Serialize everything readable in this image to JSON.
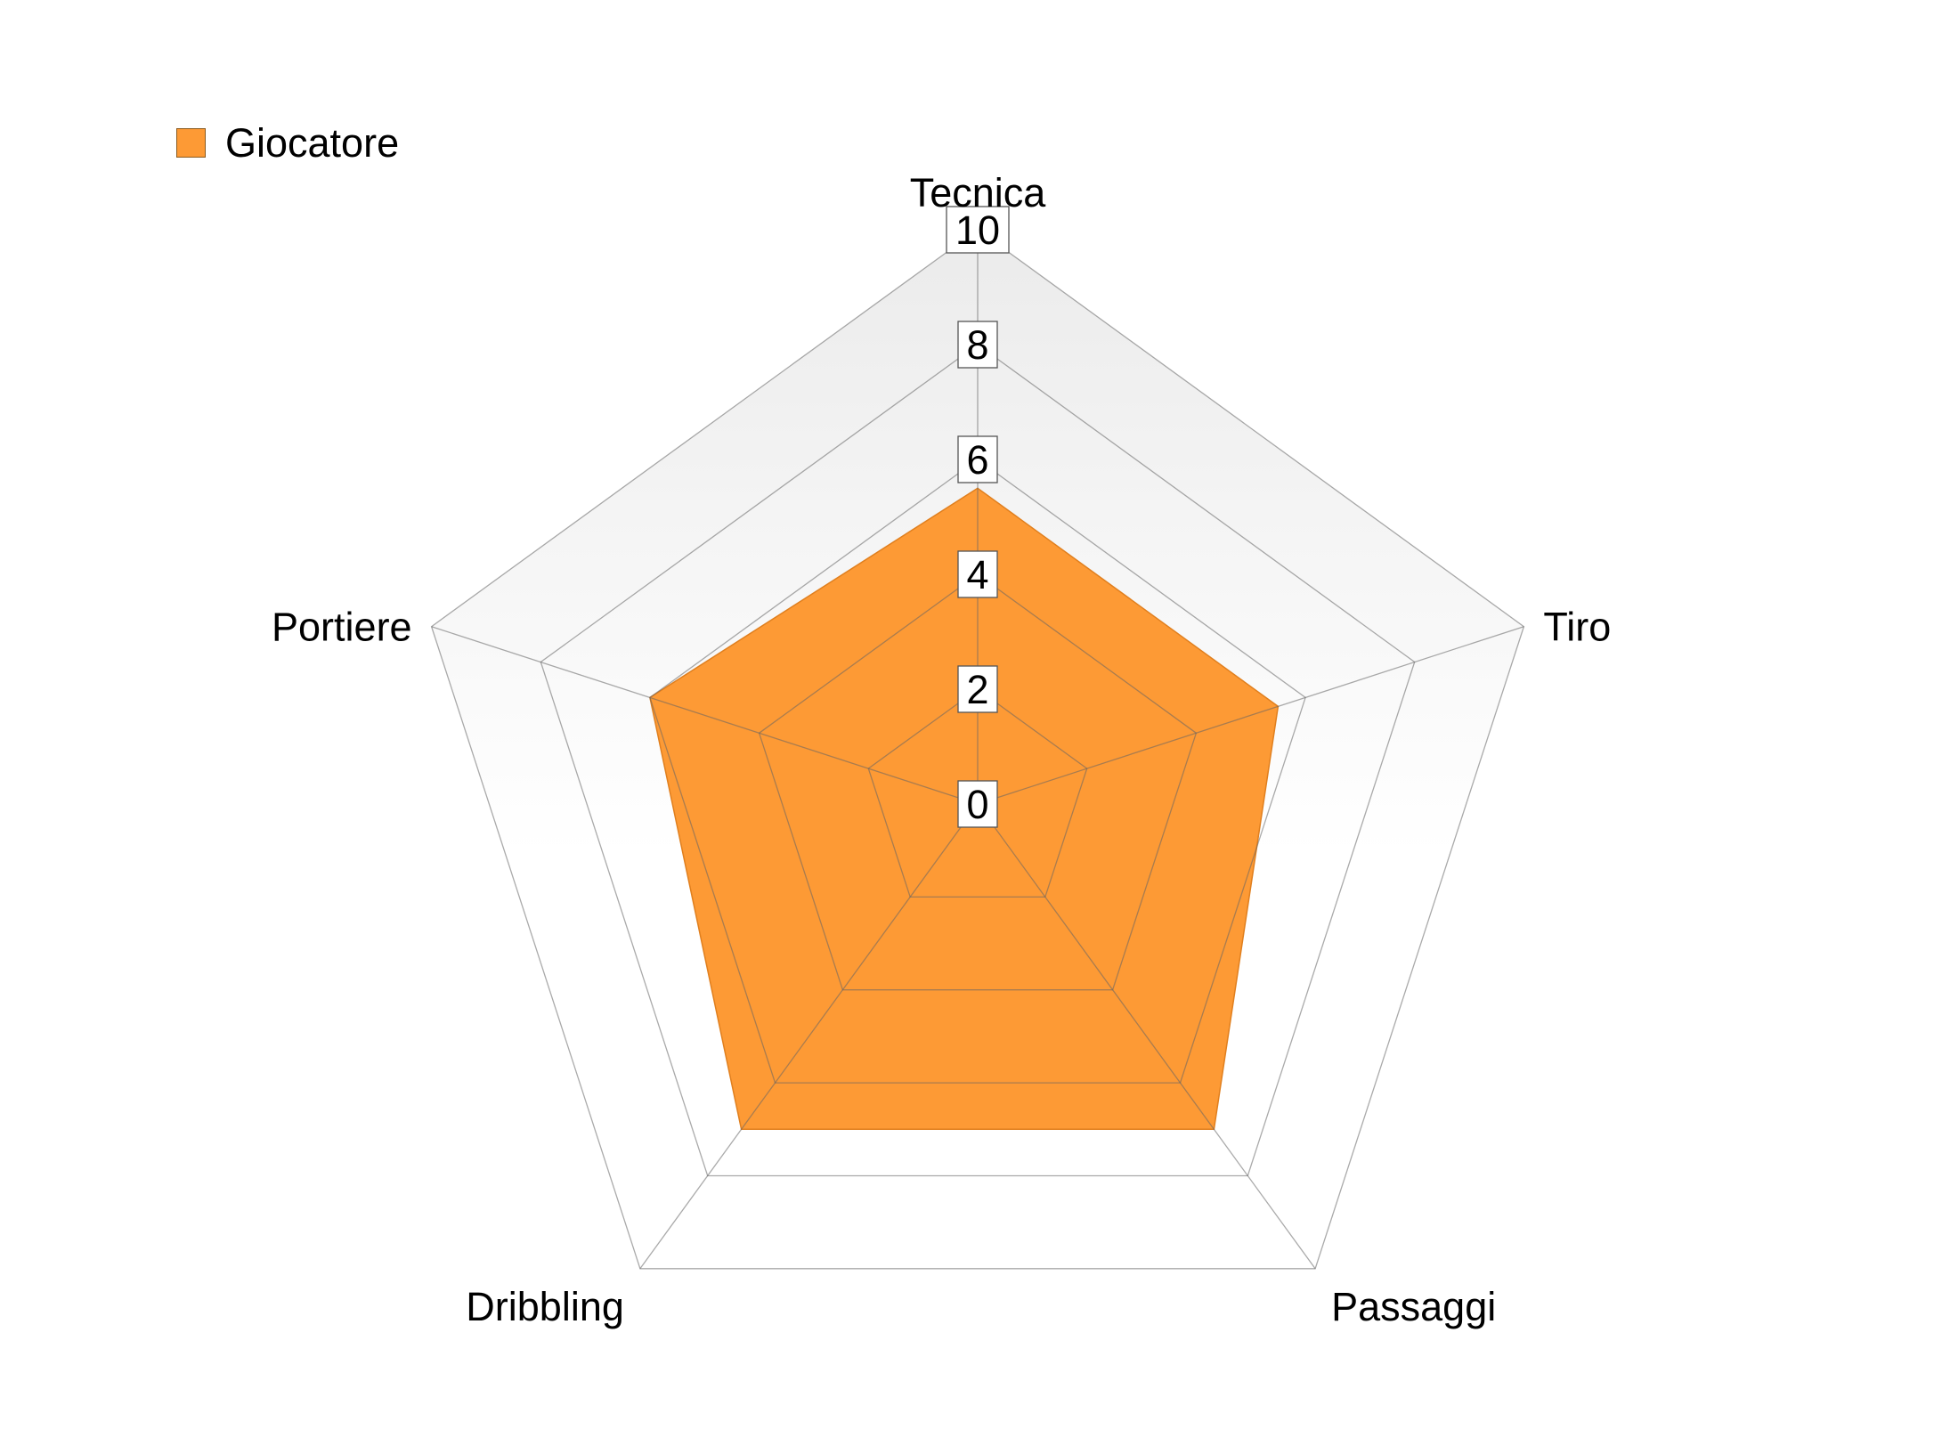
{
  "chart_data": {
    "type": "radar",
    "title": "",
    "categories": [
      "Tecnica",
      "Tiro",
      "Passaggi",
      "Dribbling",
      "Portiere"
    ],
    "series": [
      {
        "name": "Giocatore",
        "values": [
          5.5,
          5.5,
          7.0,
          7.0,
          6.0
        ],
        "color": "#fd9a35"
      }
    ],
    "rlim": [
      0,
      10
    ],
    "ticks": [
      0,
      2,
      4,
      6,
      8,
      10
    ],
    "tick_labels": [
      "0",
      "2",
      "4",
      "6",
      "8",
      "10"
    ],
    "legend_position": "top-left",
    "background": "light gray gradient fading toward bottom",
    "grid": true
  }
}
